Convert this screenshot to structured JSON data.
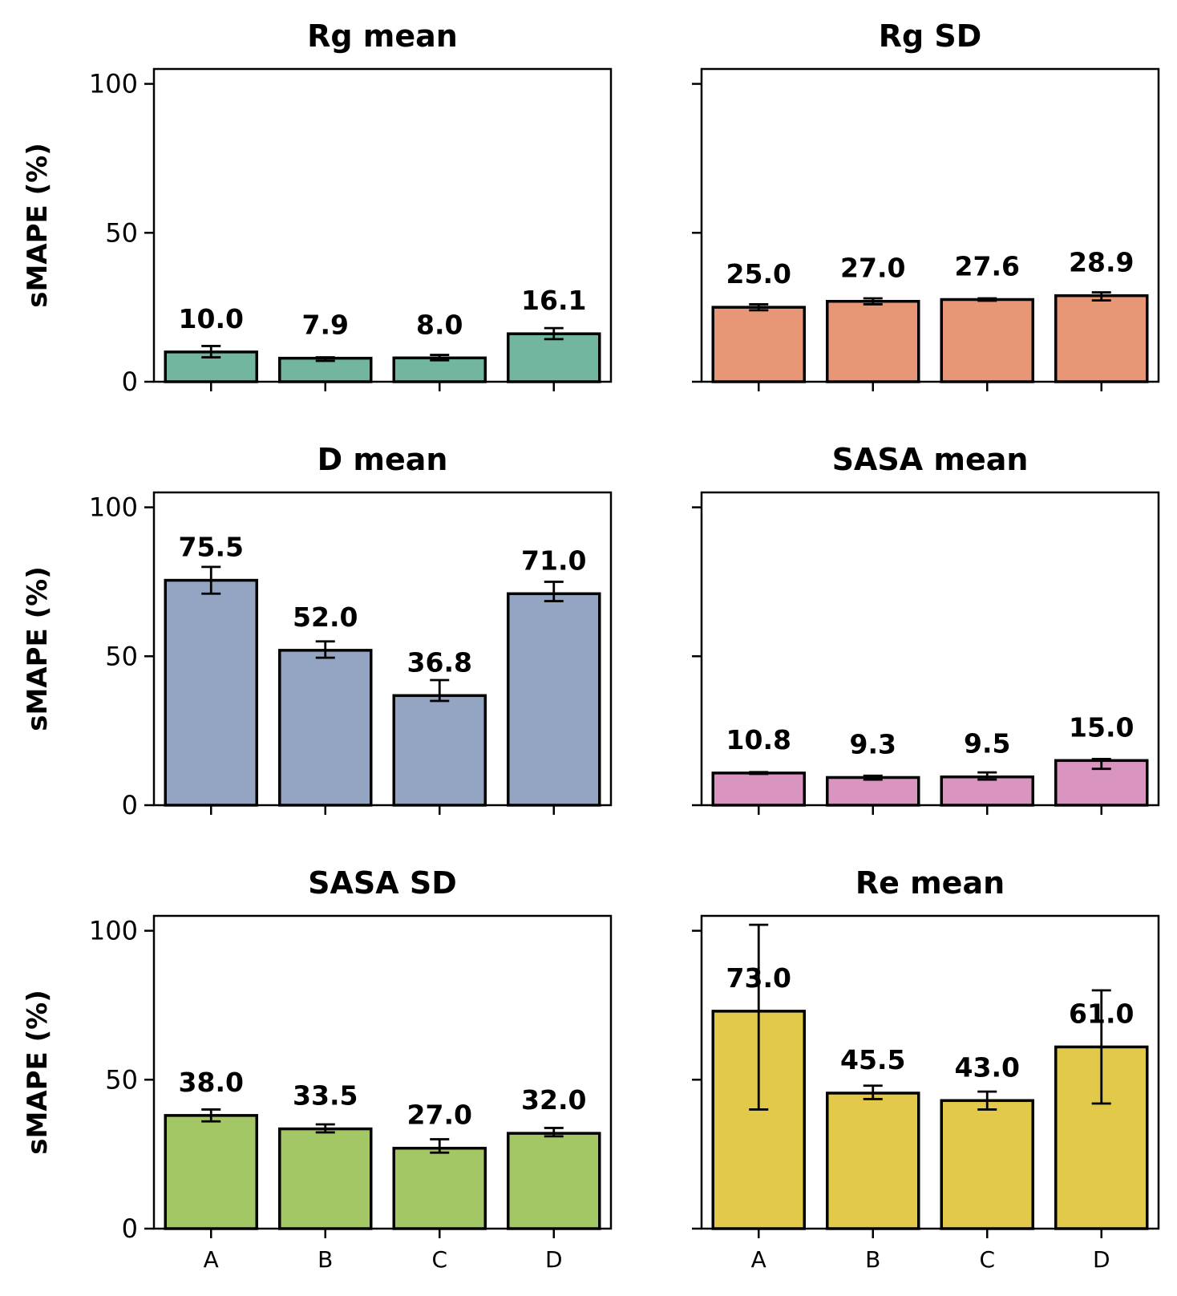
{
  "chart_data": [
    {
      "type": "bar",
      "title": "Rg mean",
      "ylabel": "sMAPE (%)",
      "categories": [
        "A",
        "B",
        "C",
        "D"
      ],
      "values": [
        10.0,
        7.9,
        8.0,
        16.1
      ],
      "error_low": [
        8.2,
        7.0,
        7.2,
        14.3
      ],
      "error_high": [
        12.0,
        8.2,
        9.0,
        18.0
      ],
      "value_labels": [
        "10.0",
        "7.9",
        "8.0",
        "16.1"
      ],
      "ylim": [
        0,
        100
      ],
      "yticks": [
        0,
        50,
        100
      ],
      "ytick_labels": [
        "0",
        "50",
        "100"
      ],
      "color": "#72b69f"
    },
    {
      "type": "bar",
      "title": "Rg SD",
      "ylabel": "",
      "categories": [
        "A",
        "B",
        "C",
        "D"
      ],
      "values": [
        25.0,
        27.0,
        27.6,
        28.9
      ],
      "error_low": [
        24.0,
        26.0,
        27.2,
        27.3
      ],
      "error_high": [
        26.0,
        28.0,
        28.0,
        30.0
      ],
      "value_labels": [
        "25.0",
        "27.0",
        "27.6",
        "28.9"
      ],
      "ylim": [
        0,
        100
      ],
      "yticks": [
        0,
        50,
        100
      ],
      "ytick_labels": [
        "",
        "",
        ""
      ],
      "color": "#e79676"
    },
    {
      "type": "bar",
      "title": "D mean",
      "ylabel": "sMAPE (%)",
      "categories": [
        "A",
        "B",
        "C",
        "D"
      ],
      "values": [
        75.5,
        52.0,
        36.8,
        71.0
      ],
      "error_low": [
        71.0,
        49.5,
        35.0,
        68.5
      ],
      "error_high": [
        80.0,
        55.0,
        42.0,
        75.0
      ],
      "value_labels": [
        "75.5",
        "52.0",
        "36.8",
        "71.0"
      ],
      "ylim": [
        0,
        100
      ],
      "yticks": [
        0,
        50,
        100
      ],
      "ytick_labels": [
        "0",
        "50",
        "100"
      ],
      "color": "#94a5c3"
    },
    {
      "type": "bar",
      "title": "SASA mean",
      "ylabel": "",
      "categories": [
        "A",
        "B",
        "C",
        "D"
      ],
      "values": [
        10.8,
        9.3,
        9.5,
        15.0
      ],
      "error_low": [
        10.5,
        8.6,
        8.6,
        12.2
      ],
      "error_high": [
        11.1,
        9.9,
        11.0,
        15.5
      ],
      "value_labels": [
        "10.8",
        "9.3",
        "9.5",
        "15.0"
      ],
      "ylim": [
        0,
        100
      ],
      "yticks": [
        0,
        50,
        100
      ],
      "ytick_labels": [
        "",
        "",
        ""
      ],
      "color": "#d994bf"
    },
    {
      "type": "bar",
      "title": "SASA SD",
      "ylabel": "sMAPE (%)",
      "categories": [
        "A",
        "B",
        "C",
        "D"
      ],
      "values": [
        38.0,
        33.5,
        27.0,
        32.0
      ],
      "error_low": [
        36.0,
        32.3,
        25.5,
        31.0
      ],
      "error_high": [
        40.0,
        35.0,
        30.0,
        33.8
      ],
      "value_labels": [
        "38.0",
        "33.5",
        "27.0",
        "32.0"
      ],
      "ylim": [
        0,
        100
      ],
      "yticks": [
        0,
        50,
        100
      ],
      "ytick_labels": [
        "0",
        "50",
        "100"
      ],
      "color": "#a2c764"
    },
    {
      "type": "bar",
      "title": "Re mean",
      "ylabel": "",
      "categories": [
        "A",
        "B",
        "C",
        "D"
      ],
      "values": [
        73.0,
        45.5,
        43.0,
        61.0
      ],
      "error_low": [
        40.0,
        43.5,
        40.0,
        42.0
      ],
      "error_high": [
        102.0,
        48.0,
        46.0,
        80.0
      ],
      "value_labels": [
        "73.0",
        "45.5",
        "43.0",
        "61.0"
      ],
      "ylim": [
        0,
        100
      ],
      "yticks": [
        0,
        50,
        100
      ],
      "ytick_labels": [
        "",
        "",
        ""
      ],
      "color": "#e2c94a"
    }
  ]
}
